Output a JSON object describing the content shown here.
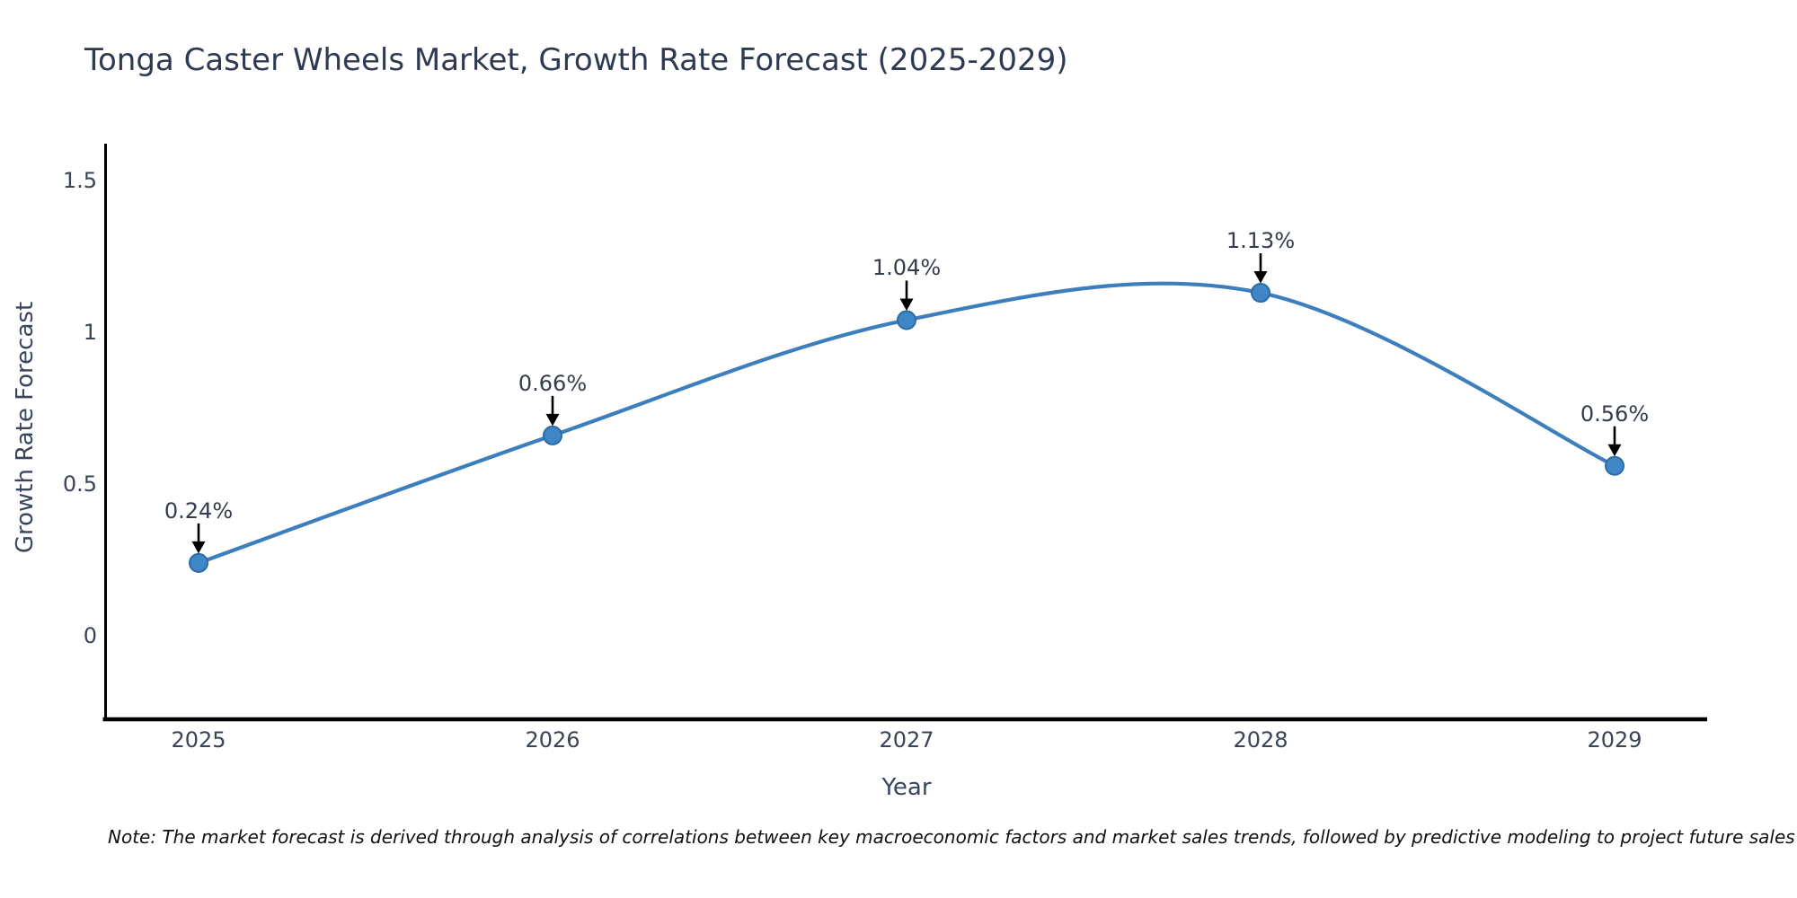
{
  "title": "Tonga Caster Wheels Market, Growth Rate Forecast (2025-2029)",
  "footnote": "Note: The market forecast is derived through analysis of correlations between key macroeconomic factors and market sales trends, followed by predictive modeling to project future sales",
  "chart_data": {
    "type": "line",
    "title": "Tonga Caster Wheels Market, Growth Rate Forecast (2025-2029)",
    "xlabel": "Year",
    "ylabel": "Growth Rate Forecast",
    "categories": [
      "2025",
      "2026",
      "2027",
      "2028",
      "2029"
    ],
    "values": [
      0.24,
      0.66,
      1.04,
      1.13,
      0.56
    ],
    "point_labels": [
      "0.24%",
      "0.66%",
      "1.04%",
      "1.13%",
      "0.56%"
    ],
    "yticks": [
      0,
      0.5,
      1,
      1.5
    ],
    "ytick_labels": [
      "0",
      "0.5",
      "1",
      "1.5"
    ],
    "ylim": [
      -0.27,
      1.62
    ],
    "grid": false,
    "legend": false,
    "smooth": true,
    "annotation_style": "value label with downward black arrow to marker",
    "colors": {
      "line": "#3d7ebc",
      "marker_fill": "#3f86c6",
      "marker_edge": "#2c6ba4",
      "arrow": "#000000",
      "axis": "#000000",
      "title_text": "#2e3a52",
      "tick_text": "#3a4455",
      "note_text": "#101010",
      "background": "#ffffff"
    }
  }
}
